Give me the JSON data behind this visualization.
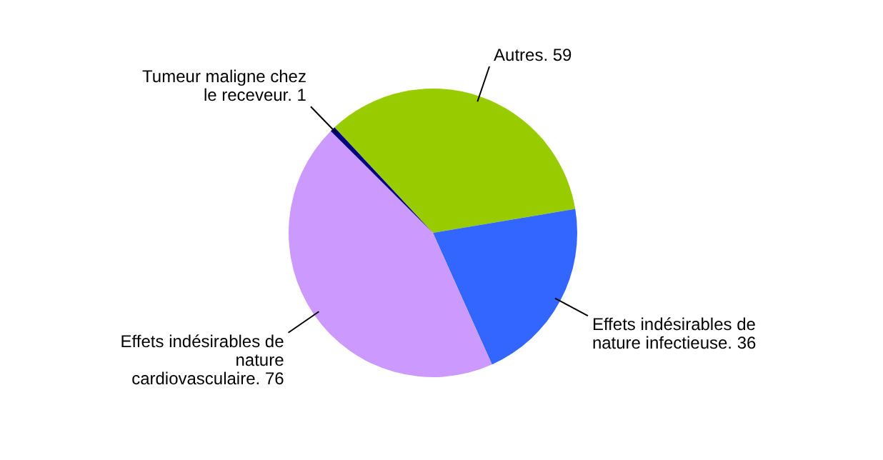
{
  "chart_data": {
    "type": "pie",
    "categories": [
      "Autres.",
      "Effets indésirables de nature infectieuse.",
      "Effets indésirables de nature cardiovasculaire.",
      "Tumeur maligne chez le receveur."
    ],
    "values": [
      59,
      36,
      76,
      1
    ],
    "colors": [
      "#99cc00",
      "#3366ff",
      "#cc99ff",
      "#000080"
    ],
    "data_labels": true,
    "legend": false
  }
}
